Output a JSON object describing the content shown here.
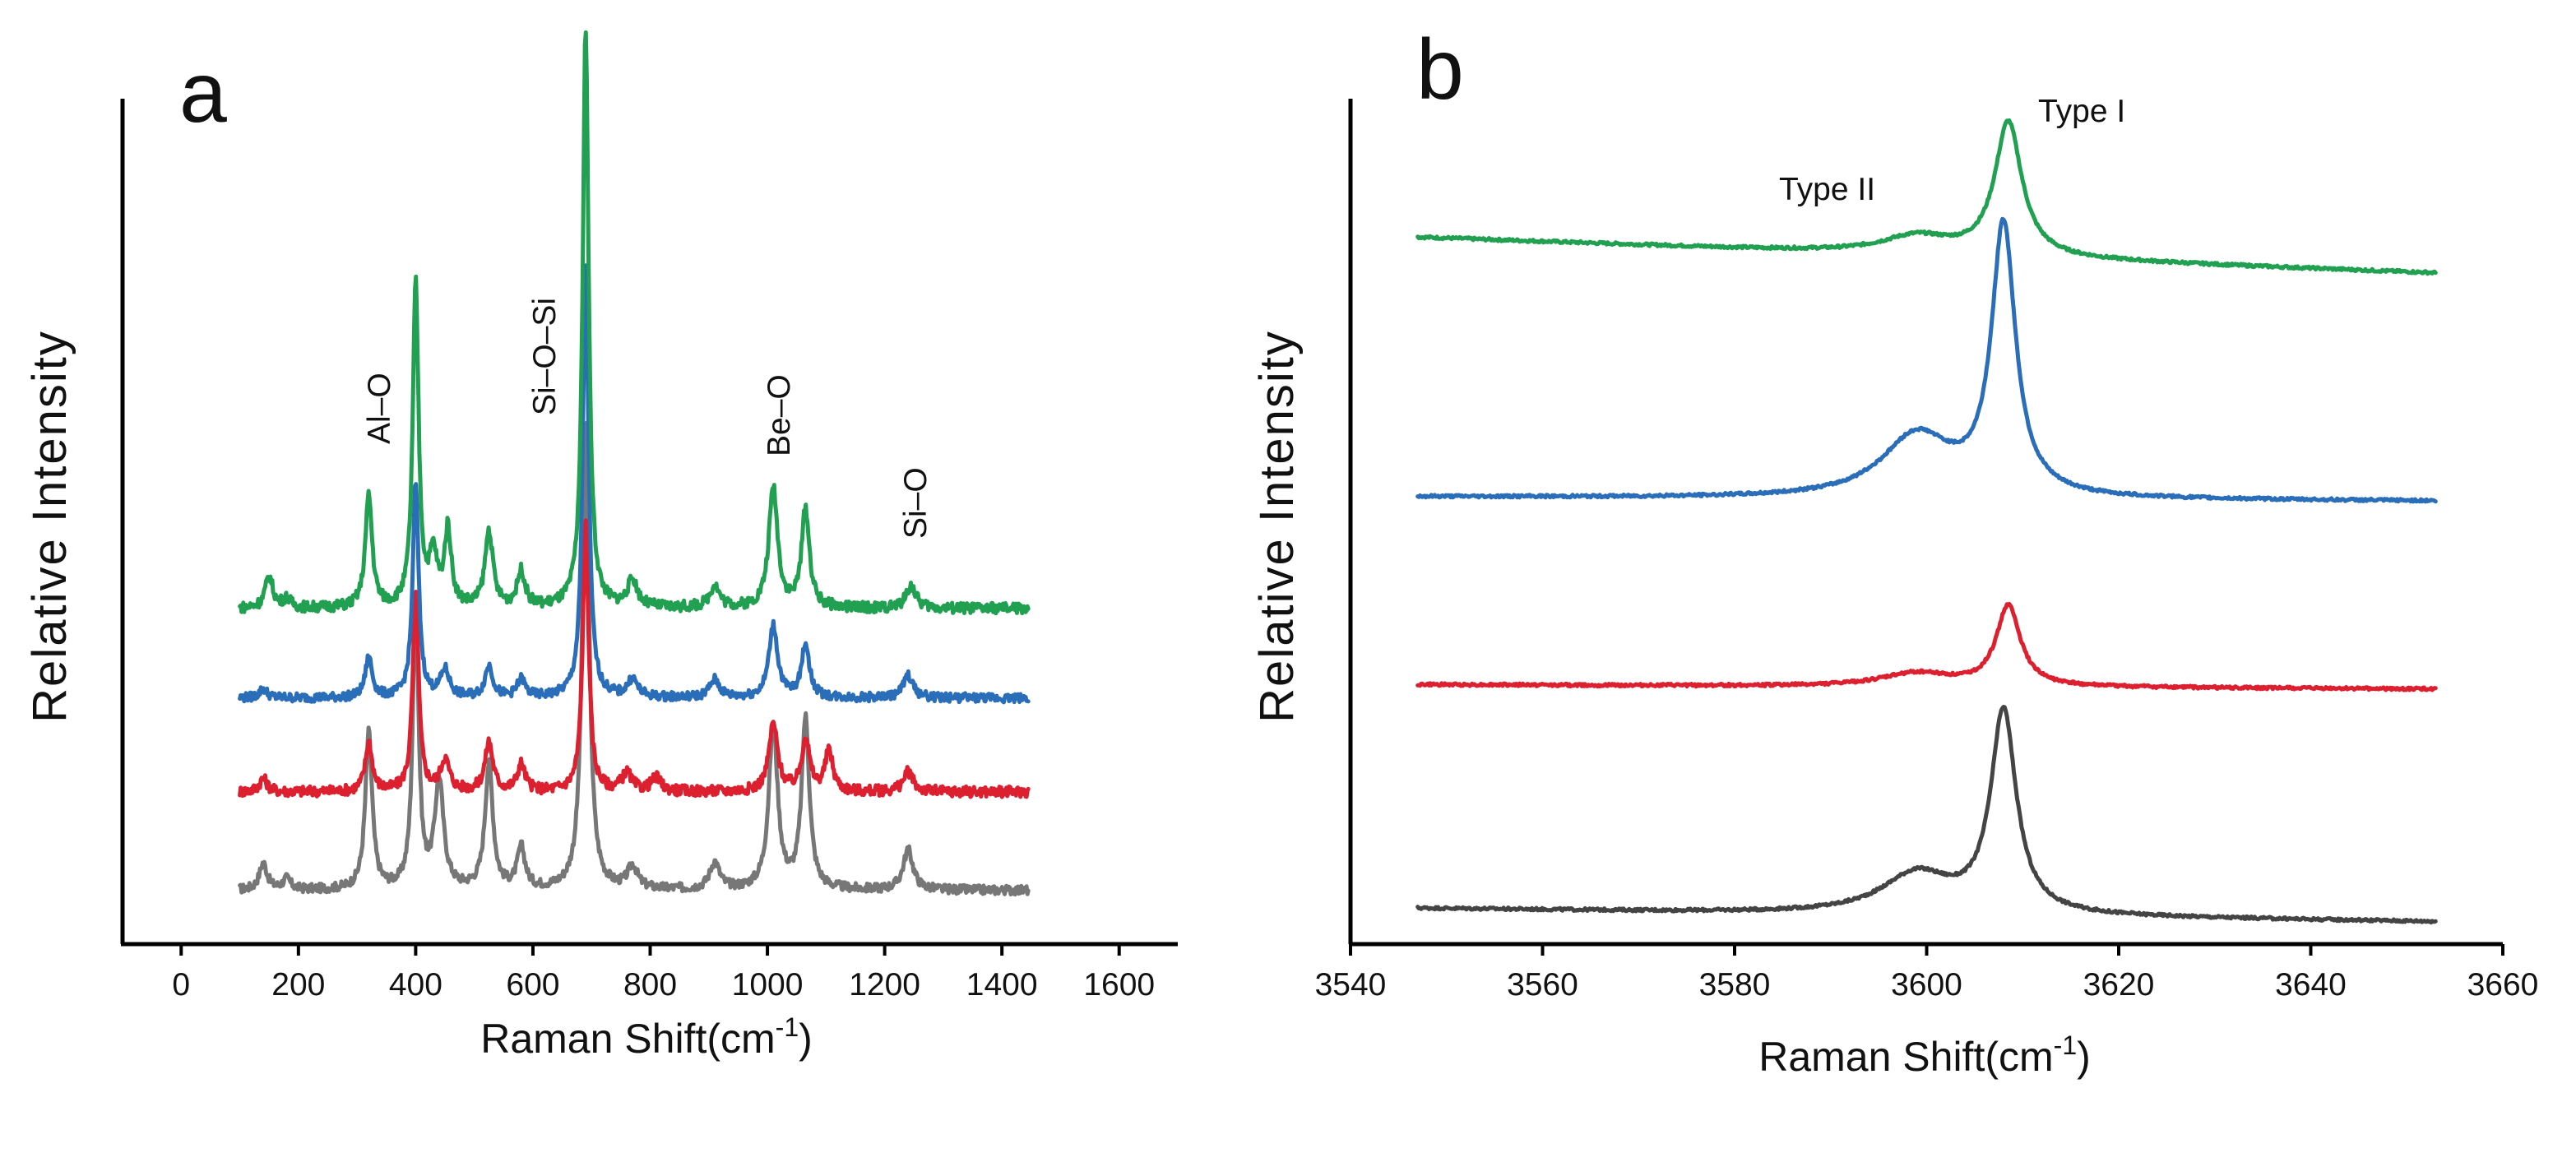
{
  "chart_data": [
    {
      "panel": "a",
      "type": "line",
      "xlabel": "Raman Shift(cm",
      "xlabel_sup": "-1",
      "xlabel_close": ")",
      "ylabel": "Relative  Intensity",
      "xlim": [
        -100,
        1700
      ],
      "xticks": [
        0,
        200,
        400,
        600,
        800,
        1000,
        1200,
        1400,
        1600
      ],
      "ylim": [
        0,
        10
      ],
      "series": [
        {
          "name": "grey",
          "color": "#777777",
          "baseline": 0.6,
          "noise": 0.05,
          "peaks": [
            [
              140,
              0.3,
              8
            ],
            [
              180,
              0.12,
              8
            ],
            [
              320,
              1.75,
              7
            ],
            [
              400,
              3.2,
              6
            ],
            [
              440,
              1.2,
              9
            ],
            [
              525,
              1.4,
              8
            ],
            [
              580,
              0.45,
              8
            ],
            [
              690,
              5.2,
              7
            ],
            [
              770,
              0.25,
              10
            ],
            [
              910,
              0.3,
              10
            ],
            [
              1010,
              1.85,
              9
            ],
            [
              1065,
              1.9,
              8
            ],
            [
              1240,
              0.45,
              10
            ]
          ],
          "x_range": [
            100,
            1445
          ]
        },
        {
          "name": "red",
          "color": "#dd2030",
          "baseline": 1.7,
          "noise": 0.06,
          "peaks": [
            [
              140,
              0.15,
              8
            ],
            [
              320,
              0.55,
              7
            ],
            [
              400,
              2.2,
              6
            ],
            [
              450,
              0.35,
              9
            ],
            [
              525,
              0.55,
              8
            ],
            [
              580,
              0.3,
              8
            ],
            [
              690,
              3.0,
              6
            ],
            [
              760,
              0.2,
              10
            ],
            [
              810,
              0.15,
              10
            ],
            [
              1010,
              0.75,
              9
            ],
            [
              1065,
              0.6,
              8
            ],
            [
              1105,
              0.45,
              8
            ],
            [
              1240,
              0.22,
              10
            ]
          ],
          "x_range": [
            100,
            1445
          ]
        },
        {
          "name": "blue",
          "color": "#2a6db8",
          "baseline": 2.75,
          "noise": 0.05,
          "peaks": [
            [
              140,
              0.1,
              8
            ],
            [
              320,
              0.45,
              7
            ],
            [
              400,
              2.4,
              6
            ],
            [
              450,
              0.3,
              9
            ],
            [
              525,
              0.35,
              8
            ],
            [
              580,
              0.2,
              8
            ],
            [
              690,
              4.8,
              6
            ],
            [
              770,
              0.2,
              10
            ],
            [
              910,
              0.2,
              10
            ],
            [
              1010,
              0.8,
              9
            ],
            [
              1065,
              0.6,
              8
            ],
            [
              1240,
              0.25,
              10
            ]
          ],
          "x_range": [
            100,
            1445
          ]
        },
        {
          "name": "green",
          "color": "#20a050",
          "baseline": 3.75,
          "noise": 0.06,
          "peaks": [
            [
              150,
              0.35,
              8
            ],
            [
              180,
              0.1,
              8
            ],
            [
              320,
              1.25,
              7
            ],
            [
              400,
              3.6,
              6
            ],
            [
              430,
              0.55,
              8
            ],
            [
              455,
              0.85,
              7
            ],
            [
              525,
              0.85,
              8
            ],
            [
              580,
              0.4,
              8
            ],
            [
              690,
              6.5,
              6
            ],
            [
              770,
              0.3,
              10
            ],
            [
              910,
              0.25,
              10
            ],
            [
              1010,
              1.35,
              9
            ],
            [
              1065,
              1.1,
              8
            ],
            [
              1245,
              0.25,
              10
            ]
          ],
          "x_range": [
            100,
            1445
          ]
        }
      ],
      "annotations": [
        "Al–O",
        "Si–O–Si",
        "Be–O",
        "Si–O"
      ]
    },
    {
      "panel": "b",
      "type": "line",
      "xlabel": "Raman Shift(cm",
      "xlabel_sup": "-1",
      "xlabel_close": ")",
      "ylabel": "Relative  Intensity",
      "xlim": [
        3540,
        3660
      ],
      "xticks": [
        3540,
        3560,
        3580,
        3600,
        3620,
        3640,
        3660
      ],
      "ylim": [
        0,
        10
      ],
      "series": [
        {
          "name": "grey",
          "color": "#444444",
          "start": 0.4,
          "end": 0.25,
          "peaks": [
            [
              3599,
              0.45,
              4.5
            ],
            [
              3608,
              2.25,
              1.6
            ]
          ],
          "x_range": [
            3547,
            3653
          ]
        },
        {
          "name": "red",
          "color": "#dd2030",
          "start": 2.9,
          "end": 2.85,
          "peaks": [
            [
              3599,
              0.15,
              4.5
            ],
            [
              3608.5,
              0.9,
              1.5
            ]
          ],
          "x_range": [
            3547,
            3653
          ]
        },
        {
          "name": "blue",
          "color": "#2a6db8",
          "start": 5.0,
          "end": 4.95,
          "peaks": [
            [
              3599,
              0.7,
              4.5
            ],
            [
              3608,
              3.0,
              1.5
            ]
          ],
          "x_range": [
            3547,
            3653
          ]
        },
        {
          "name": "green",
          "color": "#20a050",
          "start": 7.9,
          "end": 7.5,
          "peaks": [
            [
              3599,
              0.2,
              4.5
            ],
            [
              3608.5,
              1.5,
              1.7
            ]
          ],
          "x_range": [
            3547,
            3653
          ]
        }
      ],
      "annotations": [
        "Type II",
        "Type I"
      ]
    }
  ]
}
